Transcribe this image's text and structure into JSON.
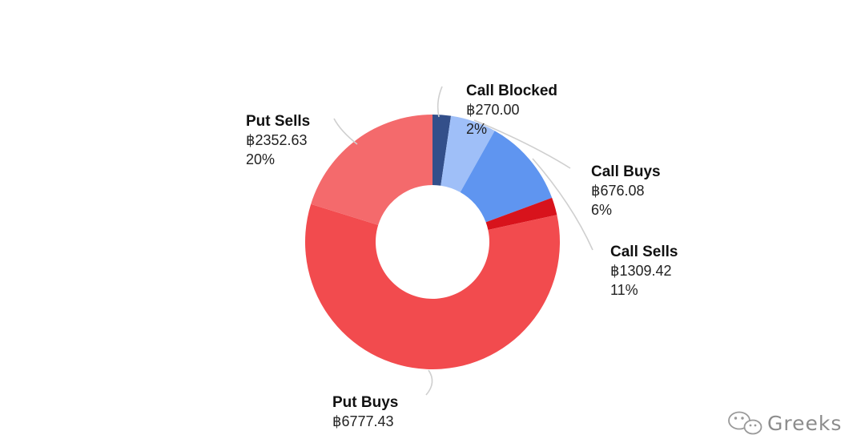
{
  "chart_data": {
    "type": "pie",
    "subtype": "donut",
    "currency_symbol": "฿",
    "slices": [
      {
        "name": "Call Blocked",
        "value_label": "฿270.00",
        "value": 270.0,
        "percent_label": "2%",
        "color": "#334f8a"
      },
      {
        "name": "Call Buys",
        "value_label": "฿676.08",
        "value": 676.08,
        "percent_label": "6%",
        "color": "#9fbff8"
      },
      {
        "name": "Call Sells",
        "value_label": "฿1309.42",
        "value": 1309.42,
        "percent_label": "11%",
        "color": "#5f95f0"
      },
      {
        "name": "",
        "value_label": "",
        "value": 260.0,
        "percent_label": "",
        "color": "#d8131c"
      },
      {
        "name": "Put Buys",
        "value_label": "฿6777.43",
        "value": 6777.43,
        "percent_label": "",
        "color": "#f24b4e"
      },
      {
        "name": "Put Sells",
        "value_label": "฿2352.63",
        "value": 2352.63,
        "percent_label": "20%",
        "color": "#f46a6c"
      }
    ]
  },
  "watermark": {
    "text": "Greeks",
    "icon": "wechat-icon"
  }
}
